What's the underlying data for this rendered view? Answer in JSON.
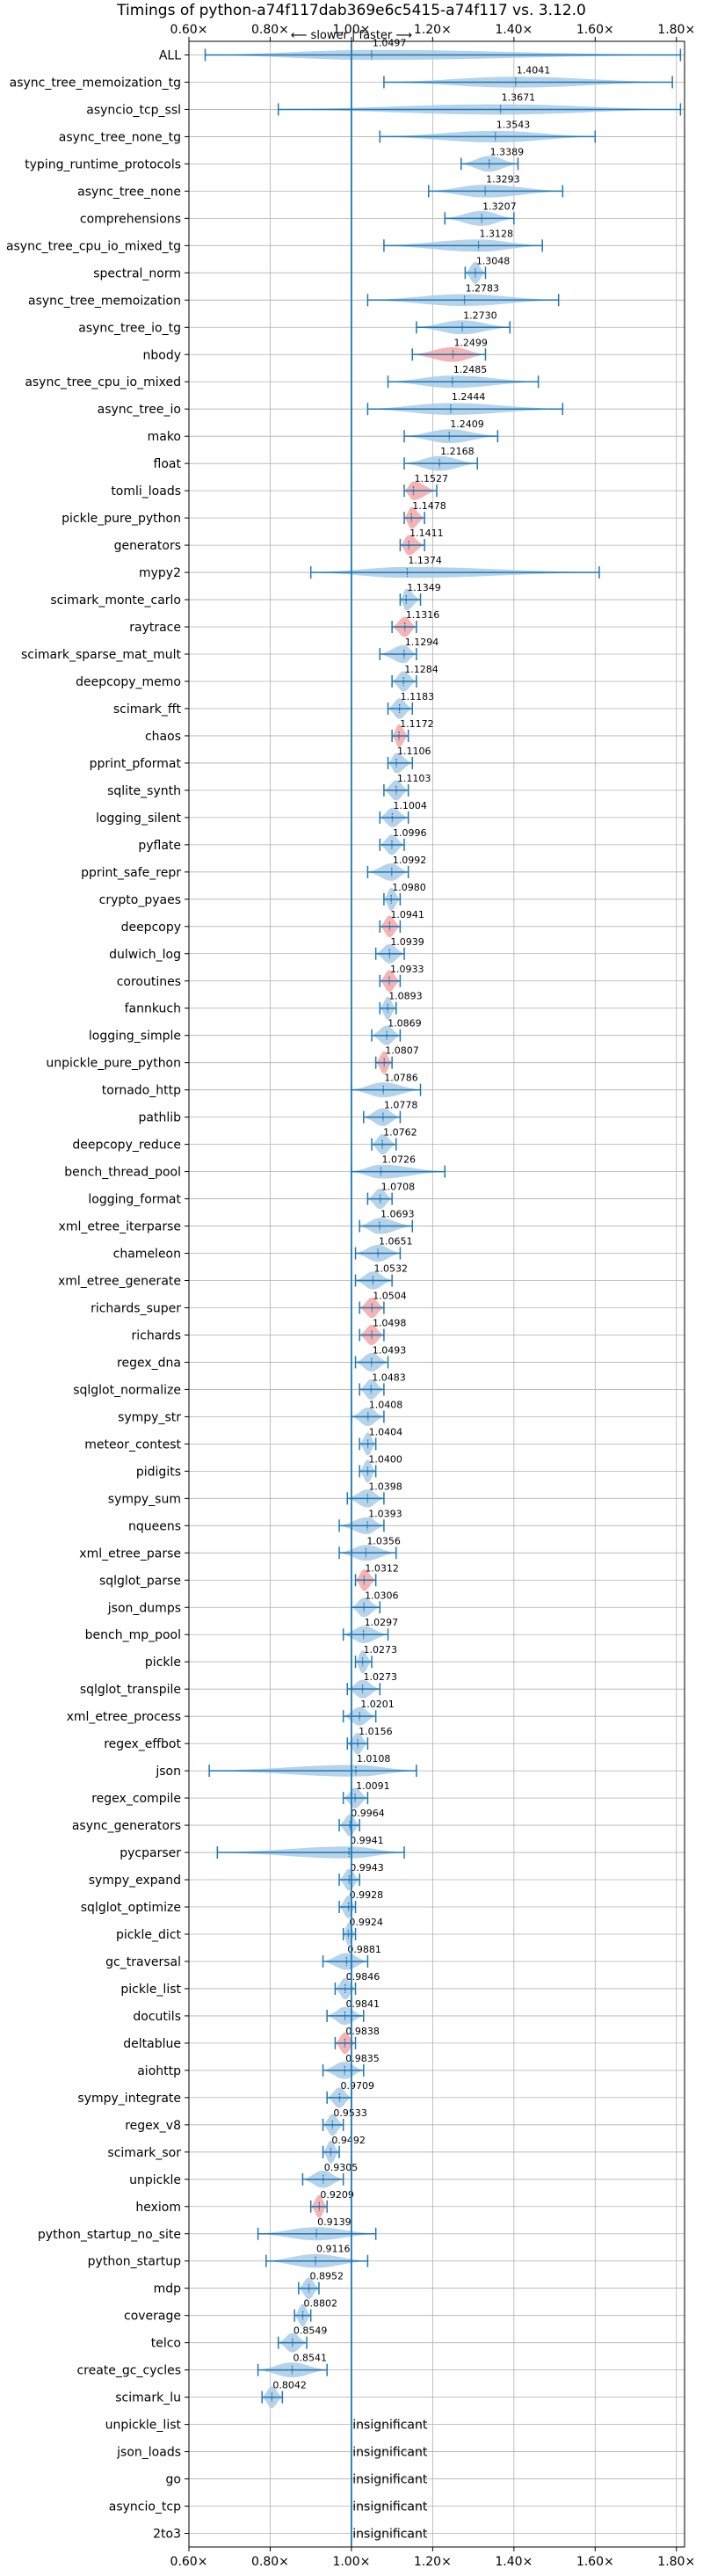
{
  "chart_data": {
    "type": "violin",
    "title": "Timings of python-a74f117dab369e6c5415-a74f117 vs. 3.12.0",
    "axis_note": "⟵ slower | faster ⟶",
    "xlim": [
      0.6,
      1.82
    ],
    "x_ticks": [
      0.6,
      0.8,
      1.0,
      1.2,
      1.4,
      1.6,
      1.8
    ],
    "x_tick_labels": [
      "0.60×",
      "0.80×",
      "1.00×",
      "1.20×",
      "1.40×",
      "1.60×",
      "1.80×"
    ],
    "reference_line": 1.0,
    "grid": true,
    "insignificant_label": "insignificant",
    "benchmarks": [
      {
        "name": "ALL",
        "value": 1.0497,
        "label": "1.0497",
        "min": 0.64,
        "max": 1.81,
        "highlight": false
      },
      {
        "name": "async_tree_memoization_tg",
        "value": 1.4041,
        "label": "1.4041",
        "min": 1.08,
        "max": 1.79,
        "highlight": false
      },
      {
        "name": "asyncio_tcp_ssl",
        "value": 1.3671,
        "label": "1.3671",
        "min": 0.82,
        "max": 1.81,
        "highlight": false
      },
      {
        "name": "async_tree_none_tg",
        "value": 1.3543,
        "label": "1.3543",
        "min": 1.07,
        "max": 1.6,
        "highlight": false
      },
      {
        "name": "typing_runtime_protocols",
        "value": 1.3389,
        "label": "1.3389",
        "min": 1.27,
        "max": 1.41,
        "highlight": false
      },
      {
        "name": "async_tree_none",
        "value": 1.3293,
        "label": "1.3293",
        "min": 1.19,
        "max": 1.52,
        "highlight": false
      },
      {
        "name": "comprehensions",
        "value": 1.3207,
        "label": "1.3207",
        "min": 1.23,
        "max": 1.4,
        "highlight": false
      },
      {
        "name": "async_tree_cpu_io_mixed_tg",
        "value": 1.3128,
        "label": "1.3128",
        "min": 1.08,
        "max": 1.47,
        "highlight": false
      },
      {
        "name": "spectral_norm",
        "value": 1.3048,
        "label": "1.3048",
        "min": 1.28,
        "max": 1.33,
        "highlight": false
      },
      {
        "name": "async_tree_memoization",
        "value": 1.2783,
        "label": "1.2783",
        "min": 1.04,
        "max": 1.51,
        "highlight": false
      },
      {
        "name": "async_tree_io_tg",
        "value": 1.273,
        "label": "1.2730",
        "min": 1.16,
        "max": 1.39,
        "highlight": false
      },
      {
        "name": "nbody",
        "value": 1.2499,
        "label": "1.2499",
        "min": 1.15,
        "max": 1.33,
        "highlight": true
      },
      {
        "name": "async_tree_cpu_io_mixed",
        "value": 1.2485,
        "label": "1.2485",
        "min": 1.09,
        "max": 1.46,
        "highlight": false
      },
      {
        "name": "async_tree_io",
        "value": 1.2444,
        "label": "1.2444",
        "min": 1.04,
        "max": 1.52,
        "highlight": false
      },
      {
        "name": "mako",
        "value": 1.2409,
        "label": "1.2409",
        "min": 1.13,
        "max": 1.36,
        "highlight": false
      },
      {
        "name": "float",
        "value": 1.2168,
        "label": "1.2168",
        "min": 1.13,
        "max": 1.31,
        "highlight": false
      },
      {
        "name": "tomli_loads",
        "value": 1.1527,
        "label": "1.1527",
        "min": 1.13,
        "max": 1.21,
        "highlight": true
      },
      {
        "name": "pickle_pure_python",
        "value": 1.1478,
        "label": "1.1478",
        "min": 1.13,
        "max": 1.18,
        "highlight": true
      },
      {
        "name": "generators",
        "value": 1.1411,
        "label": "1.1411",
        "min": 1.12,
        "max": 1.18,
        "highlight": true
      },
      {
        "name": "mypy2",
        "value": 1.1374,
        "label": "1.1374",
        "min": 0.9,
        "max": 1.61,
        "highlight": false
      },
      {
        "name": "scimark_monte_carlo",
        "value": 1.1349,
        "label": "1.1349",
        "min": 1.12,
        "max": 1.17,
        "highlight": false
      },
      {
        "name": "raytrace",
        "value": 1.1316,
        "label": "1.1316",
        "min": 1.1,
        "max": 1.16,
        "highlight": true
      },
      {
        "name": "scimark_sparse_mat_mult",
        "value": 1.1294,
        "label": "1.1294",
        "min": 1.07,
        "max": 1.16,
        "highlight": false
      },
      {
        "name": "deepcopy_memo",
        "value": 1.1284,
        "label": "1.1284",
        "min": 1.1,
        "max": 1.16,
        "highlight": false
      },
      {
        "name": "scimark_fft",
        "value": 1.1183,
        "label": "1.1183",
        "min": 1.09,
        "max": 1.15,
        "highlight": false
      },
      {
        "name": "chaos",
        "value": 1.1172,
        "label": "1.1172",
        "min": 1.1,
        "max": 1.14,
        "highlight": true
      },
      {
        "name": "pprint_pformat",
        "value": 1.1106,
        "label": "1.1106",
        "min": 1.09,
        "max": 1.15,
        "highlight": false
      },
      {
        "name": "sqlite_synth",
        "value": 1.1103,
        "label": "1.1103",
        "min": 1.08,
        "max": 1.14,
        "highlight": false
      },
      {
        "name": "logging_silent",
        "value": 1.1004,
        "label": "1.1004",
        "min": 1.07,
        "max": 1.14,
        "highlight": false
      },
      {
        "name": "pyflate",
        "value": 1.0996,
        "label": "1.0996",
        "min": 1.07,
        "max": 1.13,
        "highlight": false
      },
      {
        "name": "pprint_safe_repr",
        "value": 1.0992,
        "label": "1.0992",
        "min": 1.04,
        "max": 1.14,
        "highlight": false
      },
      {
        "name": "crypto_pyaes",
        "value": 1.098,
        "label": "1.0980",
        "min": 1.08,
        "max": 1.12,
        "highlight": false
      },
      {
        "name": "deepcopy",
        "value": 1.0941,
        "label": "1.0941",
        "min": 1.07,
        "max": 1.12,
        "highlight": true
      },
      {
        "name": "dulwich_log",
        "value": 1.0939,
        "label": "1.0939",
        "min": 1.06,
        "max": 1.13,
        "highlight": false
      },
      {
        "name": "coroutines",
        "value": 1.0933,
        "label": "1.0933",
        "min": 1.07,
        "max": 1.12,
        "highlight": true
      },
      {
        "name": "fannkuch",
        "value": 1.0893,
        "label": "1.0893",
        "min": 1.07,
        "max": 1.11,
        "highlight": false
      },
      {
        "name": "logging_simple",
        "value": 1.0869,
        "label": "1.0869",
        "min": 1.05,
        "max": 1.12,
        "highlight": false
      },
      {
        "name": "unpickle_pure_python",
        "value": 1.0807,
        "label": "1.0807",
        "min": 1.06,
        "max": 1.1,
        "highlight": true
      },
      {
        "name": "tornado_http",
        "value": 1.0786,
        "label": "1.0786",
        "min": 1.0,
        "max": 1.17,
        "highlight": false
      },
      {
        "name": "pathlib",
        "value": 1.0778,
        "label": "1.0778",
        "min": 1.03,
        "max": 1.12,
        "highlight": false
      },
      {
        "name": "deepcopy_reduce",
        "value": 1.0762,
        "label": "1.0762",
        "min": 1.05,
        "max": 1.11,
        "highlight": false
      },
      {
        "name": "bench_thread_pool",
        "value": 1.0726,
        "label": "1.0726",
        "min": 1.0,
        "max": 1.23,
        "highlight": false
      },
      {
        "name": "logging_format",
        "value": 1.0708,
        "label": "1.0708",
        "min": 1.04,
        "max": 1.1,
        "highlight": false
      },
      {
        "name": "xml_etree_iterparse",
        "value": 1.0693,
        "label": "1.0693",
        "min": 1.02,
        "max": 1.15,
        "highlight": false
      },
      {
        "name": "chameleon",
        "value": 1.0651,
        "label": "1.0651",
        "min": 1.01,
        "max": 1.12,
        "highlight": false
      },
      {
        "name": "xml_etree_generate",
        "value": 1.0532,
        "label": "1.0532",
        "min": 1.01,
        "max": 1.1,
        "highlight": false
      },
      {
        "name": "richards_super",
        "value": 1.0504,
        "label": "1.0504",
        "min": 1.02,
        "max": 1.08,
        "highlight": true
      },
      {
        "name": "richards",
        "value": 1.0498,
        "label": "1.0498",
        "min": 1.02,
        "max": 1.08,
        "highlight": true
      },
      {
        "name": "regex_dna",
        "value": 1.0493,
        "label": "1.0493",
        "min": 1.01,
        "max": 1.09,
        "highlight": false
      },
      {
        "name": "sqlglot_normalize",
        "value": 1.0483,
        "label": "1.0483",
        "min": 1.02,
        "max": 1.08,
        "highlight": false
      },
      {
        "name": "sympy_str",
        "value": 1.0408,
        "label": "1.0408",
        "min": 1.0,
        "max": 1.08,
        "highlight": false
      },
      {
        "name": "meteor_contest",
        "value": 1.0404,
        "label": "1.0404",
        "min": 1.02,
        "max": 1.06,
        "highlight": false
      },
      {
        "name": "pidigits",
        "value": 1.04,
        "label": "1.0400",
        "min": 1.02,
        "max": 1.06,
        "highlight": false
      },
      {
        "name": "sympy_sum",
        "value": 1.0398,
        "label": "1.0398",
        "min": 0.99,
        "max": 1.08,
        "highlight": false
      },
      {
        "name": "nqueens",
        "value": 1.0393,
        "label": "1.0393",
        "min": 0.97,
        "max": 1.08,
        "highlight": false
      },
      {
        "name": "xml_etree_parse",
        "value": 1.0356,
        "label": "1.0356",
        "min": 0.97,
        "max": 1.11,
        "highlight": false
      },
      {
        "name": "sqlglot_parse",
        "value": 1.0312,
        "label": "1.0312",
        "min": 1.01,
        "max": 1.06,
        "highlight": true
      },
      {
        "name": "json_dumps",
        "value": 1.0306,
        "label": "1.0306",
        "min": 1.0,
        "max": 1.07,
        "highlight": false
      },
      {
        "name": "bench_mp_pool",
        "value": 1.0297,
        "label": "1.0297",
        "min": 0.98,
        "max": 1.09,
        "highlight": false
      },
      {
        "name": "pickle",
        "value": 1.0273,
        "label": "1.0273",
        "min": 1.01,
        "max": 1.05,
        "highlight": false
      },
      {
        "name": "sqlglot_transpile",
        "value": 1.0273,
        "label": "1.0273",
        "min": 0.99,
        "max": 1.07,
        "highlight": false
      },
      {
        "name": "xml_etree_process",
        "value": 1.0201,
        "label": "1.0201",
        "min": 0.98,
        "max": 1.06,
        "highlight": false
      },
      {
        "name": "regex_effbot",
        "value": 1.0156,
        "label": "1.0156",
        "min": 0.99,
        "max": 1.04,
        "highlight": false
      },
      {
        "name": "json",
        "value": 1.0108,
        "label": "1.0108",
        "min": 0.65,
        "max": 1.16,
        "highlight": false
      },
      {
        "name": "regex_compile",
        "value": 1.0091,
        "label": "1.0091",
        "min": 0.98,
        "max": 1.04,
        "highlight": false
      },
      {
        "name": "async_generators",
        "value": 0.9964,
        "label": "0.9964",
        "min": 0.97,
        "max": 1.02,
        "highlight": false
      },
      {
        "name": "pycparser",
        "value": 0.9941,
        "label": "0.9941",
        "min": 0.67,
        "max": 1.13,
        "highlight": false
      },
      {
        "name": "sympy_expand",
        "value": 0.9943,
        "label": "0.9943",
        "min": 0.97,
        "max": 1.02,
        "highlight": false
      },
      {
        "name": "sqlglot_optimize",
        "value": 0.9928,
        "label": "0.9928",
        "min": 0.97,
        "max": 1.01,
        "highlight": false
      },
      {
        "name": "pickle_dict",
        "value": 0.9924,
        "label": "0.9924",
        "min": 0.98,
        "max": 1.01,
        "highlight": false
      },
      {
        "name": "gc_traversal",
        "value": 0.9881,
        "label": "0.9881",
        "min": 0.93,
        "max": 1.04,
        "highlight": false
      },
      {
        "name": "pickle_list",
        "value": 0.9846,
        "label": "0.9846",
        "min": 0.96,
        "max": 1.01,
        "highlight": false
      },
      {
        "name": "docutils",
        "value": 0.9841,
        "label": "0.9841",
        "min": 0.94,
        "max": 1.03,
        "highlight": false
      },
      {
        "name": "deltablue",
        "value": 0.9838,
        "label": "0.9838",
        "min": 0.96,
        "max": 1.01,
        "highlight": true
      },
      {
        "name": "aiohttp",
        "value": 0.9835,
        "label": "0.9835",
        "min": 0.93,
        "max": 1.03,
        "highlight": false
      },
      {
        "name": "sympy_integrate",
        "value": 0.9709,
        "label": "0.9709",
        "min": 0.94,
        "max": 1.0,
        "highlight": false
      },
      {
        "name": "regex_v8",
        "value": 0.9533,
        "label": "0.9533",
        "min": 0.93,
        "max": 0.98,
        "highlight": false
      },
      {
        "name": "scimark_sor",
        "value": 0.9492,
        "label": "0.9492",
        "min": 0.93,
        "max": 0.97,
        "highlight": false
      },
      {
        "name": "unpickle",
        "value": 0.9305,
        "label": "0.9305",
        "min": 0.88,
        "max": 0.98,
        "highlight": false
      },
      {
        "name": "hexiom",
        "value": 0.9209,
        "label": "0.9209",
        "min": 0.9,
        "max": 0.94,
        "highlight": true
      },
      {
        "name": "python_startup_no_site",
        "value": 0.9139,
        "label": "0.9139",
        "min": 0.77,
        "max": 1.06,
        "highlight": false
      },
      {
        "name": "python_startup",
        "value": 0.9116,
        "label": "0.9116",
        "min": 0.79,
        "max": 1.04,
        "highlight": false
      },
      {
        "name": "mdp",
        "value": 0.8952,
        "label": "0.8952",
        "min": 0.87,
        "max": 0.92,
        "highlight": false
      },
      {
        "name": "coverage",
        "value": 0.8802,
        "label": "0.8802",
        "min": 0.86,
        "max": 0.9,
        "highlight": false
      },
      {
        "name": "telco",
        "value": 0.8549,
        "label": "0.8549",
        "min": 0.82,
        "max": 0.89,
        "highlight": false
      },
      {
        "name": "create_gc_cycles",
        "value": 0.8541,
        "label": "0.8541",
        "min": 0.77,
        "max": 0.94,
        "highlight": false
      },
      {
        "name": "scimark_lu",
        "value": 0.8042,
        "label": "0.8042",
        "min": 0.78,
        "max": 0.83,
        "highlight": false
      },
      {
        "name": "unpickle_list",
        "value": null,
        "label": "insignificant",
        "min": null,
        "max": null,
        "highlight": false
      },
      {
        "name": "json_loads",
        "value": null,
        "label": "insignificant",
        "min": null,
        "max": null,
        "highlight": false
      },
      {
        "name": "go",
        "value": null,
        "label": "insignificant",
        "min": null,
        "max": null,
        "highlight": false
      },
      {
        "name": "asyncio_tcp",
        "value": null,
        "label": "insignificant",
        "min": null,
        "max": null,
        "highlight": false
      },
      {
        "name": "2to3",
        "value": null,
        "label": "insignificant",
        "min": null,
        "max": null,
        "highlight": false
      }
    ],
    "colors": {
      "violin": "#a9cbe6",
      "highlight": "#f4a6a6",
      "line": "#1f77b4",
      "grid": "#b0b0b0"
    }
  }
}
